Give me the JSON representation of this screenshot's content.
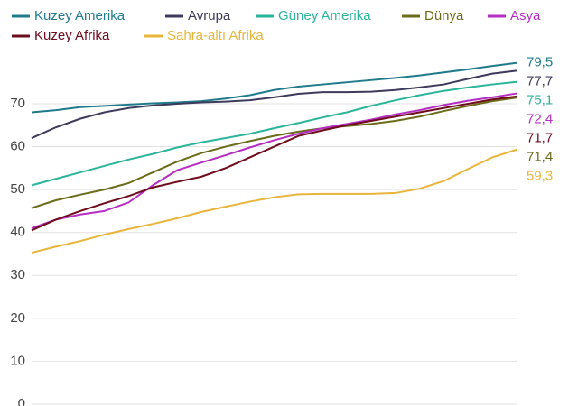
{
  "chart_data": {
    "type": "line",
    "categories": [
      null,
      null,
      null,
      null,
      null,
      null,
      null,
      null,
      null,
      null,
      null,
      null,
      null,
      null,
      null,
      null,
      null,
      null,
      null,
      null,
      null
    ],
    "ylim": [
      0,
      80
    ],
    "yticks": [
      0,
      10,
      20,
      30,
      40,
      50,
      60,
      70
    ],
    "grid": true,
    "legend": "top-left",
    "series": [
      {
        "name": "Kuzey Amerika",
        "color": "#1f7a8c",
        "values": [
          68,
          68.5,
          69.2,
          69.5,
          69.8,
          70.1,
          70.3,
          70.6,
          71.2,
          72,
          73.2,
          74,
          74.5,
          75,
          75.5,
          76,
          76.6,
          77.3,
          78,
          78.8,
          79.5
        ],
        "value_labels": [
          null,
          null,
          null,
          null,
          null,
          null,
          null,
          null,
          null,
          null,
          null,
          null,
          null,
          null,
          null,
          null,
          null,
          null,
          null,
          null,
          "79,5"
        ]
      },
      {
        "name": "Avrupa",
        "color": "#3d3a5c",
        "values": [
          62,
          64.5,
          66.5,
          68,
          69,
          69.6,
          70,
          70.3,
          70.5,
          70.8,
          71.5,
          72.3,
          72.7,
          72.7,
          72.8,
          73.2,
          73.8,
          74.5,
          75.8,
          77,
          77.7
        ],
        "value_labels": [
          null,
          null,
          null,
          null,
          null,
          null,
          null,
          null,
          null,
          null,
          null,
          null,
          null,
          null,
          null,
          null,
          null,
          null,
          null,
          null,
          "77,7"
        ]
      },
      {
        "name": "Güney Amerika",
        "color": "#2ab59a",
        "values": [
          51,
          52.5,
          54,
          55.5,
          57,
          58.3,
          59.8,
          61,
          62,
          63,
          64.3,
          65.5,
          66.8,
          68,
          69.5,
          70.8,
          72,
          73,
          73.8,
          74.5,
          75.1
        ],
        "value_labels": [
          null,
          null,
          null,
          null,
          null,
          null,
          null,
          null,
          null,
          null,
          null,
          null,
          null,
          null,
          null,
          null,
          null,
          null,
          null,
          null,
          "75,1"
        ]
      },
      {
        "name": "Dünya",
        "color": "#6b6b1a",
        "values": [
          45.7,
          47.5,
          48.8,
          50,
          51.5,
          54,
          56.5,
          58.5,
          60,
          61.3,
          62.5,
          63.5,
          64.3,
          64.8,
          65.3,
          66,
          67,
          68.3,
          69.5,
          70.6,
          71.4
        ],
        "value_labels": [
          null,
          null,
          null,
          null,
          null,
          null,
          null,
          null,
          null,
          null,
          null,
          null,
          null,
          null,
          null,
          null,
          null,
          null,
          null,
          null,
          "71,4"
        ]
      },
      {
        "name": "Asya",
        "color": "#b52ec4",
        "values": [
          41,
          43,
          44.2,
          45,
          47,
          51,
          54.5,
          56.3,
          58,
          59.8,
          61.5,
          63,
          64.3,
          65.3,
          66.3,
          67.5,
          68.5,
          69.7,
          70.7,
          71.5,
          72.4
        ],
        "value_labels": [
          null,
          null,
          null,
          null,
          null,
          null,
          null,
          null,
          null,
          null,
          null,
          null,
          null,
          null,
          null,
          null,
          null,
          null,
          null,
          null,
          "72,4"
        ]
      },
      {
        "name": "Kuzey Afrika",
        "color": "#6e0d1c",
        "values": [
          40.5,
          43,
          45,
          46.8,
          48.5,
          50.5,
          51.8,
          53,
          55,
          57.5,
          60,
          62.5,
          63.8,
          65,
          66,
          67,
          68,
          69,
          70,
          71,
          71.7
        ],
        "value_labels": [
          null,
          null,
          null,
          null,
          null,
          null,
          null,
          null,
          null,
          null,
          null,
          null,
          null,
          null,
          null,
          null,
          null,
          null,
          null,
          null,
          "71,7"
        ]
      },
      {
        "name": "Sahra-altı Afrika",
        "color": "#e8b53a",
        "values": [
          35.3,
          36.7,
          38,
          39.5,
          40.8,
          42,
          43.3,
          44.8,
          46,
          47.2,
          48.2,
          48.9,
          49,
          49,
          49,
          49.2,
          50.2,
          52,
          54.8,
          57.5,
          59.3
        ],
        "value_labels": [
          null,
          null,
          null,
          null,
          null,
          null,
          null,
          null,
          null,
          null,
          null,
          null,
          null,
          null,
          null,
          null,
          null,
          null,
          null,
          null,
          "59,3"
        ]
      }
    ]
  }
}
